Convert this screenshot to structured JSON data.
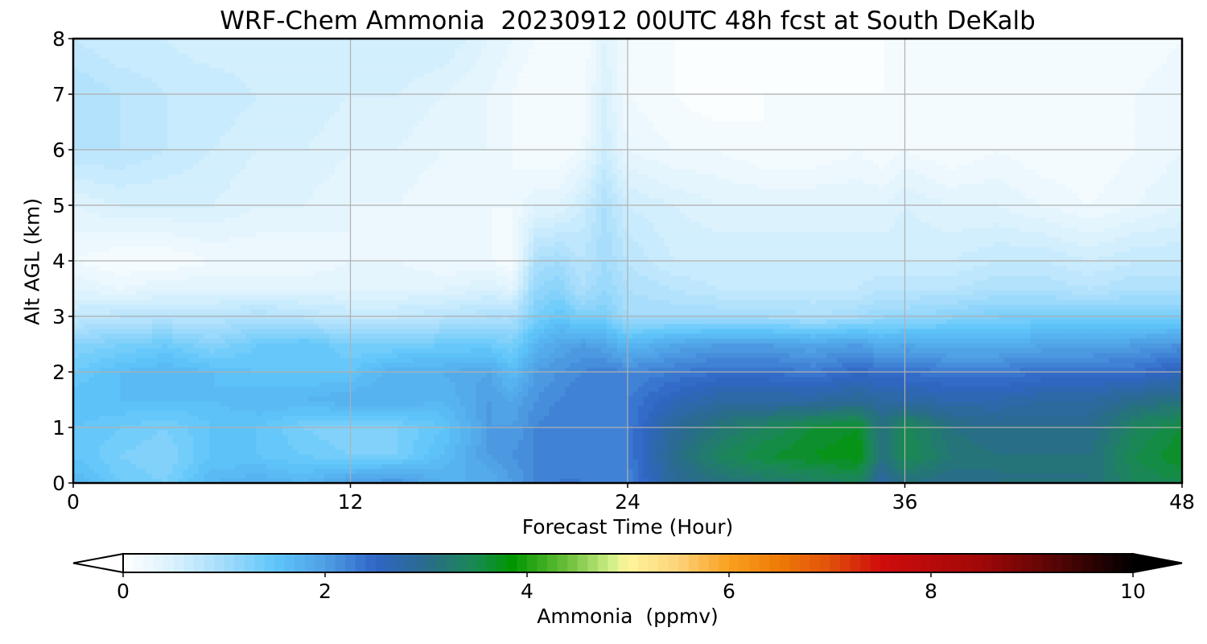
{
  "chart_data": {
    "type": "heatmap",
    "title": "WRF-Chem Ammonia  20230912 00UTC 48h fcst at South DeKalb",
    "xlabel": "Forecast Time (Hour)",
    "ylabel": "Alt AGL (km)",
    "xlim": [
      0,
      48
    ],
    "ylim": [
      0,
      8
    ],
    "xticks": [
      0,
      12,
      24,
      36,
      48
    ],
    "yticks": [
      0,
      1,
      2,
      3,
      4,
      5,
      6,
      7,
      8
    ],
    "grid": true,
    "x": [
      0,
      2,
      4,
      6,
      8,
      10,
      12,
      14,
      16,
      18,
      19,
      20,
      21,
      22,
      23,
      24,
      26,
      28,
      30,
      32,
      34,
      35,
      36,
      38,
      40,
      42,
      44,
      46,
      48
    ],
    "y": [
      0,
      0.5,
      1,
      1.5,
      2,
      2.5,
      3,
      3.5,
      4,
      5,
      6,
      7,
      8
    ],
    "z": [
      [
        1.7,
        1.4,
        1.3,
        1.7,
        1.8,
        1.7,
        2.0,
        2.1,
        1.8,
        1.8,
        2.0,
        2.2,
        2.3,
        2.3,
        2.2,
        2.2,
        2.9,
        3.1,
        3.2,
        3.3,
        3.4,
        2.8,
        3.1,
        3.0,
        3.1,
        3.1,
        3.1,
        3.4,
        3.5
      ],
      [
        1.5,
        1.3,
        1.2,
        1.5,
        1.5,
        1.4,
        1.3,
        1.3,
        1.6,
        2.0,
        2.1,
        2.2,
        2.3,
        2.3,
        2.2,
        2.3,
        3.0,
        3.4,
        3.6,
        3.7,
        3.8,
        3.1,
        3.5,
        3.2,
        3.1,
        3.1,
        3.1,
        3.5,
        3.7
      ],
      [
        1.5,
        1.4,
        1.3,
        1.5,
        1.5,
        1.3,
        1.2,
        1.3,
        1.5,
        2.0,
        2.0,
        2.2,
        2.3,
        2.3,
        2.3,
        2.3,
        2.9,
        3.2,
        3.4,
        3.6,
        3.7,
        3.1,
        3.5,
        3.1,
        3.0,
        3.0,
        3.0,
        3.4,
        3.6
      ],
      [
        1.6,
        1.6,
        1.6,
        1.6,
        1.7,
        1.7,
        1.8,
        1.8,
        1.7,
        2.0,
        1.9,
        2.1,
        2.2,
        2.3,
        2.3,
        2.3,
        2.6,
        2.8,
        2.8,
        2.8,
        2.9,
        2.8,
        2.8,
        2.7,
        2.7,
        2.8,
        2.8,
        3.0,
        3.1
      ],
      [
        1.4,
        1.6,
        1.7,
        1.6,
        1.5,
        1.5,
        1.5,
        1.8,
        1.8,
        1.9,
        1.6,
        2.0,
        2.1,
        2.2,
        2.3,
        2.2,
        2.3,
        2.4,
        2.4,
        2.3,
        2.5,
        2.4,
        2.4,
        2.3,
        2.3,
        2.4,
        2.4,
        2.4,
        2.6
      ],
      [
        1.2,
        1.3,
        1.4,
        1.2,
        1.4,
        1.5,
        1.3,
        1.3,
        1.4,
        1.4,
        1.3,
        1.7,
        1.9,
        2.0,
        1.9,
        1.7,
        1.9,
        2.0,
        2.0,
        1.9,
        2.0,
        1.8,
        1.9,
        1.8,
        1.8,
        1.9,
        1.9,
        2.0,
        2.1
      ],
      [
        0.7,
        0.8,
        0.8,
        0.8,
        0.9,
        0.8,
        0.7,
        0.7,
        0.8,
        0.9,
        0.9,
        1.3,
        1.5,
        1.3,
        1.3,
        1.0,
        1.0,
        1.0,
        1.0,
        0.9,
        1.0,
        1.1,
        1.1,
        1.2,
        1.3,
        1.3,
        1.3,
        1.3,
        1.3
      ],
      [
        0.4,
        0.3,
        0.4,
        0.4,
        0.4,
        0.4,
        0.4,
        0.4,
        0.4,
        0.5,
        0.4,
        1.1,
        1.2,
        0.9,
        1.1,
        0.9,
        0.8,
        0.7,
        0.7,
        0.7,
        0.7,
        0.8,
        0.8,
        0.8,
        0.9,
        0.9,
        0.8,
        0.9,
        0.9
      ],
      [
        0.2,
        0.1,
        0.1,
        0.2,
        0.2,
        0.2,
        0.3,
        0.3,
        0.2,
        0.2,
        0.1,
        0.9,
        1.0,
        0.8,
        1.0,
        0.8,
        0.6,
        0.6,
        0.6,
        0.6,
        0.6,
        0.6,
        0.6,
        0.6,
        0.7,
        0.7,
        0.6,
        0.7,
        0.7
      ],
      [
        0.4,
        0.5,
        0.5,
        0.5,
        0.4,
        0.4,
        0.3,
        0.3,
        0.2,
        0.2,
        0.2,
        0.4,
        0.4,
        0.6,
        0.9,
        0.6,
        0.5,
        0.4,
        0.4,
        0.4,
        0.4,
        0.4,
        0.5,
        0.4,
        0.4,
        0.3,
        0.2,
        0.3,
        0.4
      ],
      [
        0.8,
        0.8,
        0.7,
        0.6,
        0.5,
        0.5,
        0.4,
        0.4,
        0.3,
        0.3,
        0.2,
        0.1,
        0.1,
        0.2,
        0.6,
        0.3,
        0.2,
        0.2,
        0.1,
        0.1,
        0.2,
        0.1,
        0.2,
        0.1,
        0.2,
        0.1,
        0.1,
        0.2,
        0.3
      ],
      [
        0.9,
        0.8,
        0.7,
        0.7,
        0.6,
        0.6,
        0.5,
        0.5,
        0.4,
        0.3,
        0.2,
        0.1,
        0.1,
        0.1,
        0.5,
        0.2,
        0.1,
        0.0,
        0.1,
        0.1,
        0.1,
        0.1,
        0.1,
        0.1,
        0.1,
        0.1,
        0.1,
        0.2,
        0.3
      ],
      [
        0.7,
        0.6,
        0.6,
        0.5,
        0.5,
        0.6,
        0.6,
        0.6,
        0.6,
        0.4,
        0.3,
        0.2,
        0.1,
        0.1,
        0.4,
        0.2,
        0.1,
        0.0,
        0.0,
        0.0,
        0.0,
        0.1,
        0.1,
        0.1,
        0.1,
        0.1,
        0.1,
        0.1,
        0.2
      ]
    ],
    "colorbar": {
      "label": "Ammonia  (ppmv)",
      "min": 0,
      "max": 10,
      "ticks": [
        0,
        2,
        4,
        6,
        8,
        10
      ],
      "extend": "both",
      "levels": 100,
      "orientation": "horizontal",
      "placement": "bottom",
      "stops": [
        {
          "v": 0.0,
          "c": "#ffffff"
        },
        {
          "v": 0.5,
          "c": "#d8f1fd"
        },
        {
          "v": 1.0,
          "c": "#a3dcfc"
        },
        {
          "v": 1.5,
          "c": "#5fc6fa"
        },
        {
          "v": 2.0,
          "c": "#4f9fe5"
        },
        {
          "v": 2.5,
          "c": "#3065c5"
        },
        {
          "v": 3.0,
          "c": "#2a6b8c"
        },
        {
          "v": 3.5,
          "c": "#198a50"
        },
        {
          "v": 3.85,
          "c": "#009600"
        },
        {
          "v": 4.4,
          "c": "#6bbf3a"
        },
        {
          "v": 4.85,
          "c": "#d4f08a"
        },
        {
          "v": 5.0,
          "c": "#fff59a"
        },
        {
          "v": 5.5,
          "c": "#fcd27a"
        },
        {
          "v": 6.0,
          "c": "#f9a01e"
        },
        {
          "v": 6.5,
          "c": "#ee7a07"
        },
        {
          "v": 7.0,
          "c": "#e1510a"
        },
        {
          "v": 7.5,
          "c": "#cf0c0c"
        },
        {
          "v": 8.5,
          "c": "#a00808"
        },
        {
          "v": 9.2,
          "c": "#5a0505"
        },
        {
          "v": 10.0,
          "c": "#000000"
        }
      ]
    }
  }
}
